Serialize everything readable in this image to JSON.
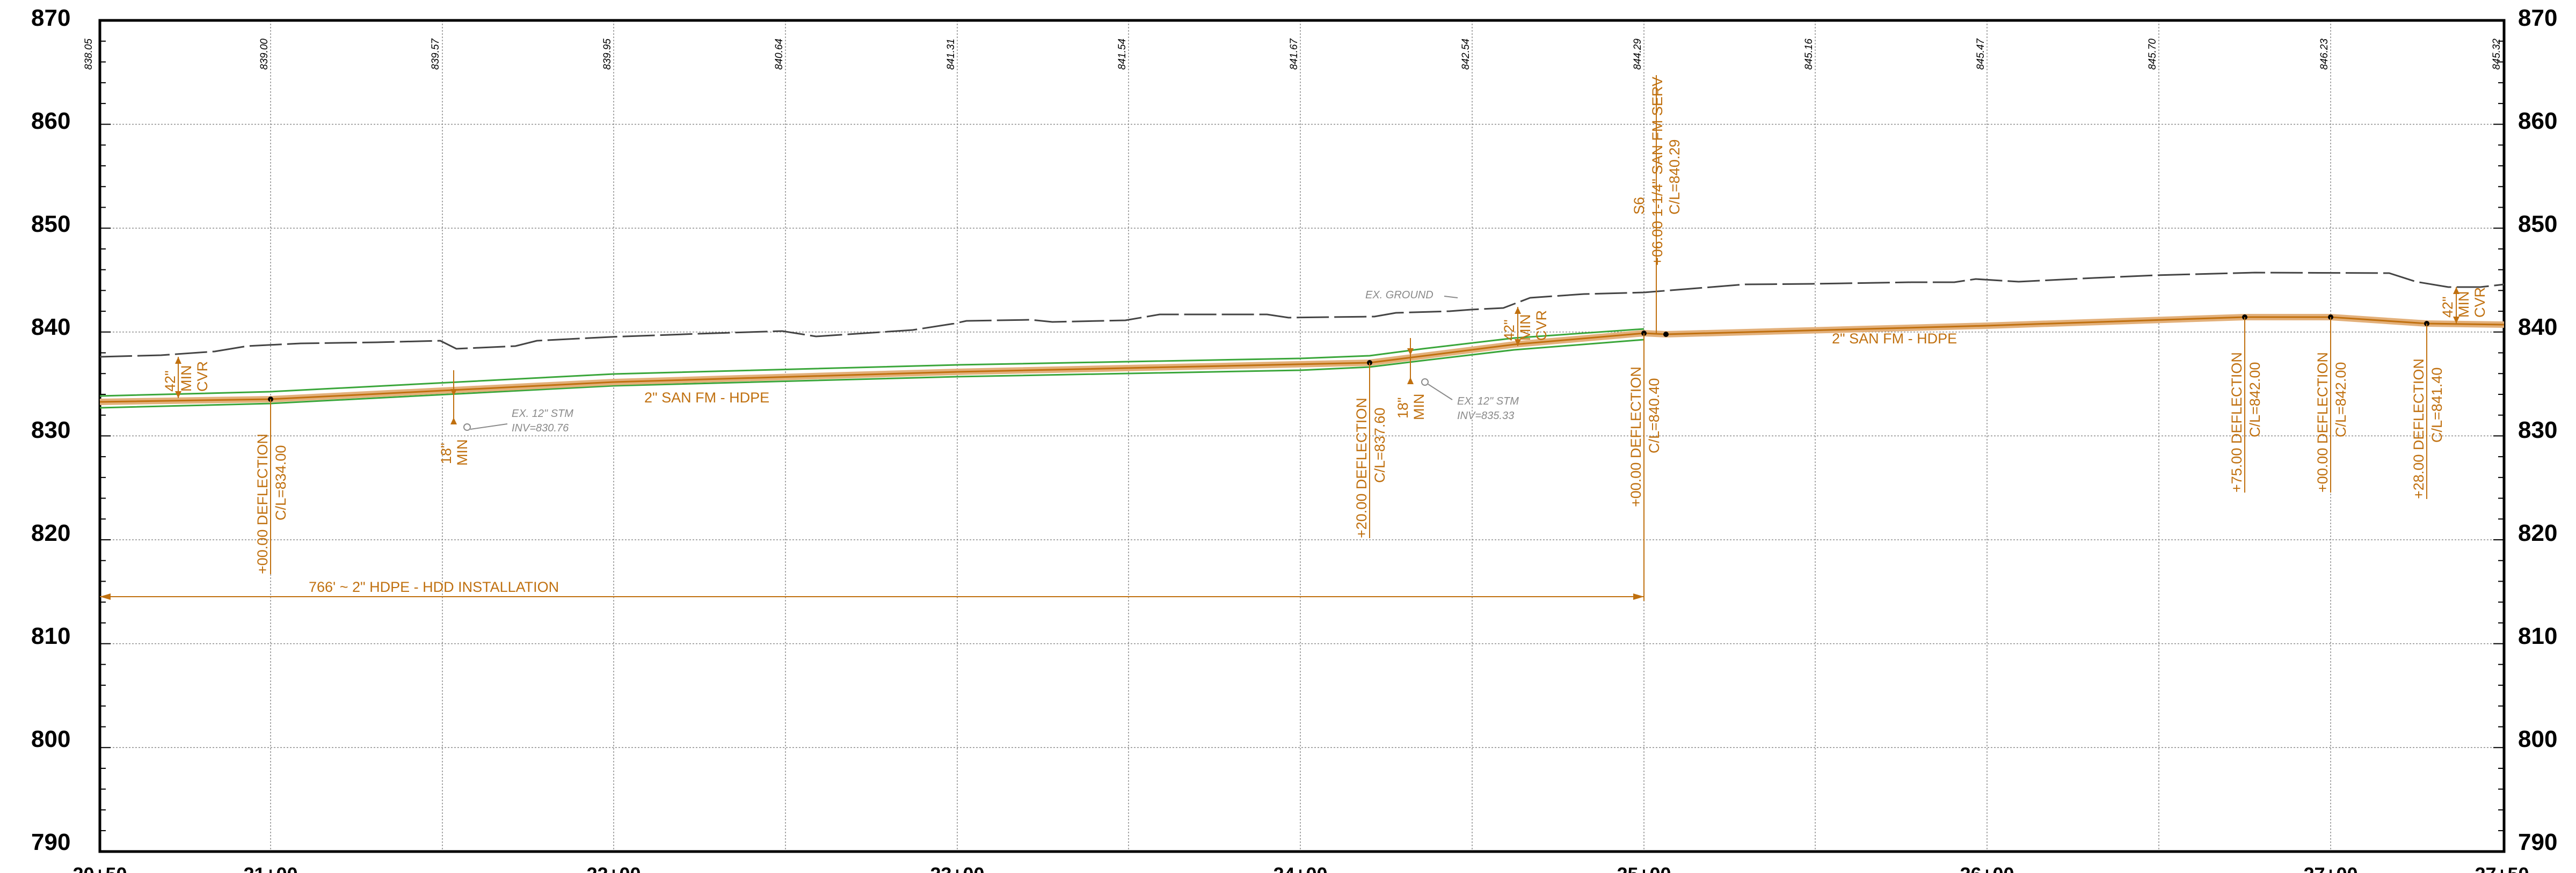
{
  "axes": {
    "elevation_labels": [
      "870",
      "860",
      "850",
      "840",
      "830",
      "820",
      "810",
      "800",
      "790"
    ],
    "station_labels": [
      "20+50",
      "21+00",
      "22+00",
      "23+00",
      "24+00",
      "25+00",
      "26+00",
      "27+00",
      "27+50"
    ]
  },
  "ground_values": [
    "838.05",
    "839.00",
    "839.57",
    "839.95",
    "840.64",
    "841.31",
    "841.54",
    "841.67",
    "842.54",
    "844.29",
    "845.16",
    "845.47",
    "845.70",
    "846.23",
    "845.32"
  ],
  "labels": {
    "ex_ground": "EX. GROUND",
    "pipe_left": "2\" SAN FM - HDPE",
    "pipe_right": "2\" SAN FM - HDPE",
    "hdd": "766' ~ 2\" HDPE - HDD INSTALLATION",
    "stm1_line1": "EX. 12\" STM",
    "stm1_line2": "INV=830.76",
    "stm2_line1": "EX. 12\" STM",
    "stm2_line2": "INV=835.33",
    "cover_42": "42\"",
    "cover_min": "MIN",
    "cover_cvr": "CVR",
    "clear_18": "18\"",
    "clear_min": "MIN",
    "serv_1": "S6",
    "serv_2": "+06.00 1-1/4\" SAN FM SERV",
    "serv_3": "C/L=840.29",
    "defl_a_1": "+00.00 DEFLECTION",
    "defl_a_2": "C/L=834.00",
    "defl_b_1": "+20.00 DEFLECTION",
    "defl_b_2": "C/L=837.60",
    "defl_c_1": "+00.00 DEFLECTION",
    "defl_c_2": "C/L=840.40",
    "defl_d_1": "+75.00 DEFLECTION",
    "defl_d_2": "C/L=842.00",
    "defl_e_1": "+00.00 DEFLECTION",
    "defl_e_2": "C/L=842.00",
    "defl_f_1": "+28.00 DEFLECTION",
    "defl_f_2": "C/L=841.40"
  },
  "colors": {
    "pipe": "#c0700f",
    "pipe_band": "#e3b07a",
    "tolerance": "#3aa63a",
    "ground": "#444444",
    "grid": "#8c8c8c",
    "grey_text": "#8a8a8a"
  }
}
